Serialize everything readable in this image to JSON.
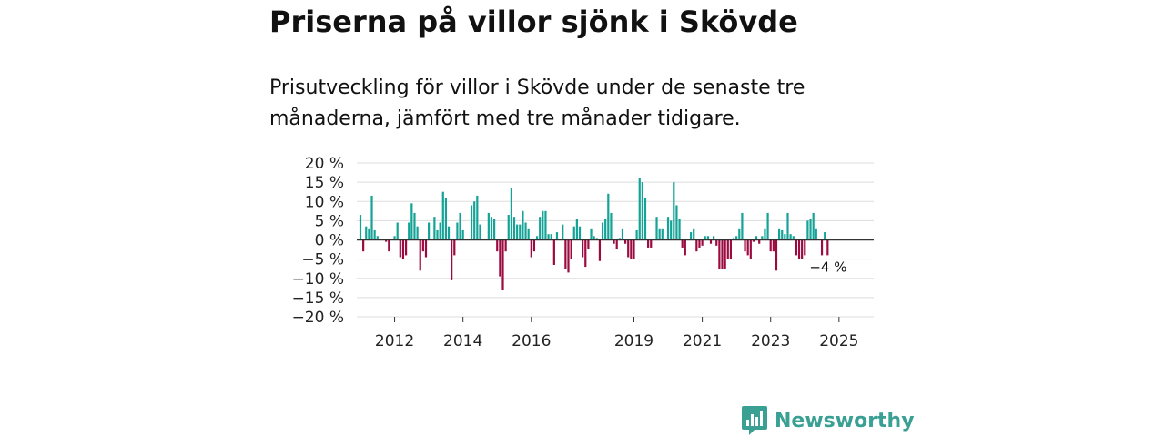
{
  "title": "Priserna på villor sjönk i Skövde",
  "subtitle": "Prisutveckling för villor i Skövde under de senaste tre månaderna, jämfört med tre månader tidigare.",
  "brand": {
    "name": "Newsworthy",
    "icon": "bar-chart-logo-icon",
    "color": "#3aa093"
  },
  "colors": {
    "positive": "#14a396",
    "negative": "#9c0a3f",
    "grid": "#dddddd",
    "zero_line": "#333333"
  },
  "chart_data": {
    "type": "bar",
    "title": "Priserna på villor sjönk i Skövde",
    "xlabel": "",
    "ylabel": "",
    "ylim": [
      -20,
      20
    ],
    "y_ticks": [
      20,
      15,
      10,
      5,
      0,
      -5,
      -10,
      -15,
      -20
    ],
    "y_tick_labels": [
      "20 %",
      "15 %",
      "10 %",
      "5 %",
      "0 %",
      "−5 %",
      "−10 %",
      "−15 %",
      "−20 %"
    ],
    "x_ticks": [
      "2012",
      "2014",
      "2016",
      "2019",
      "2021",
      "2023",
      "2025"
    ],
    "x_tick_month_index": [
      12,
      36,
      60,
      96,
      120,
      144,
      168
    ],
    "start": "2011-01",
    "grid": true,
    "last_value_label": "−4 %",
    "series": [
      {
        "name": "Prisutveckling",
        "values": [
          6.5,
          -3,
          3.5,
          3,
          11.5,
          2.5,
          1,
          0,
          0,
          -0.5,
          -3,
          0,
          1,
          4.5,
          -4.5,
          -5,
          -4,
          4.5,
          9.5,
          7,
          3.5,
          -8,
          -3,
          -4.5,
          4.5,
          0,
          6,
          2.5,
          4.5,
          12.5,
          11,
          3.5,
          -10.5,
          -4,
          4.5,
          7,
          2.5,
          0,
          0,
          9,
          10,
          11.5,
          4,
          0,
          0,
          7,
          6,
          5.5,
          -3,
          -9.5,
          -13,
          -3,
          6.5,
          13.5,
          6,
          4,
          4,
          7.5,
          4.5,
          3,
          -4.5,
          -3,
          1,
          6,
          7.5,
          7.5,
          1.5,
          1.5,
          -6.5,
          2,
          0,
          4,
          -7.5,
          -8.5,
          -5,
          3.5,
          5.5,
          3.5,
          -4.5,
          -7,
          -2.5,
          3,
          1,
          0.5,
          -5.5,
          4.5,
          5.5,
          12,
          7,
          -1,
          -2.5,
          0.5,
          3,
          -1,
          -4.5,
          -5,
          -5,
          2.5,
          16,
          15,
          11,
          -2,
          -2,
          0,
          6,
          3,
          3,
          0,
          6,
          5,
          15,
          9,
          5.5,
          -2,
          -4,
          0,
          2,
          3,
          -3,
          -2,
          -1.5,
          1,
          1,
          -1,
          1,
          -1.5,
          -7.5,
          -7.5,
          -7.5,
          -5,
          -5,
          0.5,
          1,
          3,
          7,
          -3,
          -4,
          -5,
          -0.5,
          1,
          -1,
          1,
          3,
          7,
          -3,
          -3,
          -8,
          3,
          2.5,
          1.5,
          7,
          1.5,
          1,
          -4,
          -5,
          -5,
          -4,
          5,
          5.5,
          7,
          3,
          0,
          -4,
          2,
          -4
        ]
      }
    ]
  }
}
